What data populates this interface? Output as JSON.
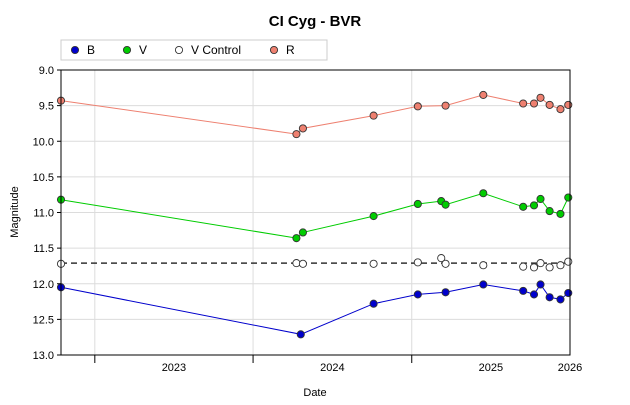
{
  "chart_data": {
    "type": "scatter",
    "title": "CI Cyg - BVR",
    "xlabel": "Date",
    "ylabel": "Magnitude",
    "xlim": [
      "2022-10-15",
      "2026-01-01"
    ],
    "ylim": [
      9.0,
      13.0
    ],
    "y_inverted": true,
    "grid": true,
    "legend_position": "top-left",
    "x_ticks": [
      "2023",
      "2024",
      "2025",
      "2026"
    ],
    "y_ticks": [
      "9.0",
      "9.5",
      "10.0",
      "10.5",
      "11.0",
      "11.5",
      "12.0",
      "12.5",
      "13.0"
    ],
    "series": [
      {
        "name": "B",
        "color": "#0000cc",
        "marker_fill": "#0000cc",
        "connected": true,
        "points": [
          [
            "2022-10-15",
            12.05
          ],
          [
            "2024-04-20",
            12.71
          ],
          [
            "2024-10-05",
            12.28
          ],
          [
            "2025-01-15",
            12.15
          ],
          [
            "2025-03-20",
            12.12
          ],
          [
            "2025-06-15",
            12.01
          ],
          [
            "2025-09-15",
            12.1
          ],
          [
            "2025-10-10",
            12.15
          ],
          [
            "2025-10-25",
            12.01
          ],
          [
            "2025-11-15",
            12.19
          ],
          [
            "2025-12-10",
            12.22
          ],
          [
            "2025-12-28",
            12.13
          ]
        ]
      },
      {
        "name": "V",
        "color": "#00cc00",
        "marker_fill": "#00cc00",
        "connected": true,
        "points": [
          [
            "2022-10-15",
            10.82
          ],
          [
            "2024-04-10",
            11.36
          ],
          [
            "2024-04-25",
            11.28
          ],
          [
            "2024-10-05",
            11.05
          ],
          [
            "2025-01-15",
            10.88
          ],
          [
            "2025-03-10",
            10.84
          ],
          [
            "2025-03-20",
            10.89
          ],
          [
            "2025-06-15",
            10.73
          ],
          [
            "2025-09-15",
            10.92
          ],
          [
            "2025-10-10",
            10.9
          ],
          [
            "2025-10-25",
            10.81
          ],
          [
            "2025-11-15",
            10.98
          ],
          [
            "2025-12-10",
            11.02
          ],
          [
            "2025-12-28",
            10.79
          ]
        ]
      },
      {
        "name": "V Control",
        "color": "#000000",
        "marker_fill": "#ffffff",
        "connected": false,
        "dashed_reference": 11.71,
        "points": [
          [
            "2022-10-15",
            11.72
          ],
          [
            "2024-04-10",
            11.71
          ],
          [
            "2024-04-25",
            11.72
          ],
          [
            "2024-10-05",
            11.72
          ],
          [
            "2025-01-15",
            11.7
          ],
          [
            "2025-03-10",
            11.64
          ],
          [
            "2025-03-20",
            11.72
          ],
          [
            "2025-06-15",
            11.74
          ],
          [
            "2025-09-15",
            11.76
          ],
          [
            "2025-10-10",
            11.77
          ],
          [
            "2025-10-25",
            11.71
          ],
          [
            "2025-11-15",
            11.77
          ],
          [
            "2025-12-10",
            11.74
          ],
          [
            "2025-12-28",
            11.69
          ]
        ]
      },
      {
        "name": "R",
        "color": "#ee8070",
        "marker_fill": "#ee8070",
        "connected": true,
        "points": [
          [
            "2022-10-15",
            9.43
          ],
          [
            "2024-04-10",
            9.9
          ],
          [
            "2024-04-25",
            9.82
          ],
          [
            "2024-10-05",
            9.64
          ],
          [
            "2025-01-15",
            9.51
          ],
          [
            "2025-03-20",
            9.5
          ],
          [
            "2025-06-15",
            9.35
          ],
          [
            "2025-09-15",
            9.47
          ],
          [
            "2025-10-10",
            9.47
          ],
          [
            "2025-10-25",
            9.39
          ],
          [
            "2025-11-15",
            9.49
          ],
          [
            "2025-12-10",
            9.55
          ],
          [
            "2025-12-28",
            9.49
          ]
        ]
      }
    ]
  }
}
